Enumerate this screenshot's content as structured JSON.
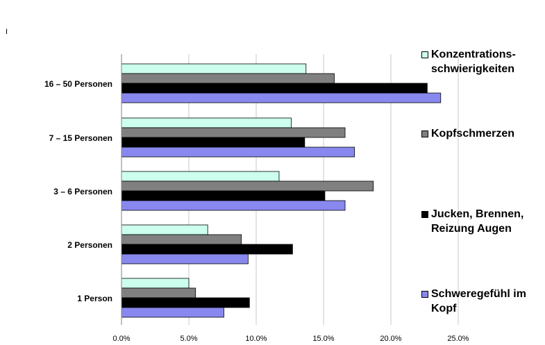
{
  "fragment_text": "I",
  "chart_data": {
    "type": "bar",
    "orientation": "horizontal",
    "categories": [
      "16 – 50 Personen",
      "7 – 15 Personen",
      "3 – 6 Personen",
      "2 Personen",
      "1 Person"
    ],
    "series": [
      {
        "name": "Konzentrations-\nschwierigkeiten",
        "color": "#ccffee",
        "values": [
          13.7,
          12.6,
          11.7,
          6.4,
          5.0
        ]
      },
      {
        "name": "Kopfschmerzen",
        "color": "#808080",
        "values": [
          15.8,
          16.6,
          18.7,
          8.9,
          5.5
        ]
      },
      {
        "name": "Jucken, Brennen,\nReizung Augen",
        "color": "#000000",
        "values": [
          22.7,
          13.6,
          15.1,
          12.7,
          9.5
        ]
      },
      {
        "name": "Schweregefühl im\nKopf",
        "color": "#8888ee",
        "values": [
          23.7,
          17.3,
          16.6,
          9.4,
          7.6
        ]
      }
    ],
    "xlim": [
      0,
      25
    ],
    "xticks": [
      "0.0%",
      "5.0%",
      "10.0%",
      "15.0%",
      "20.0%",
      "25.0%"
    ],
    "grid": "vertical",
    "legend": "right",
    "title": "",
    "xlabel": "",
    "ylabel": ""
  }
}
